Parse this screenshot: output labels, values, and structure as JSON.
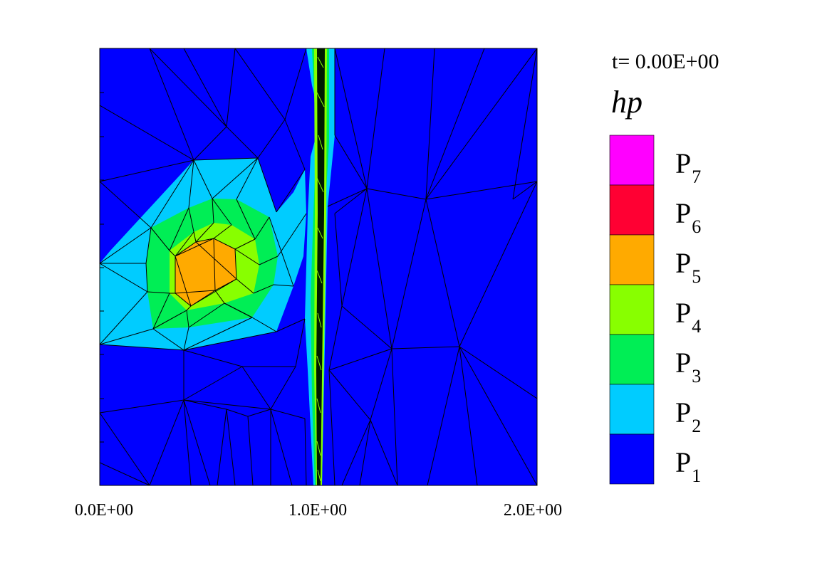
{
  "plot": {
    "time_label": "t= 0.00E+00",
    "field_label": "hp",
    "x_ticks": [
      "0.0E+00",
      "1.0E+00",
      "2.0E+00"
    ]
  },
  "legend": [
    {
      "base": "P",
      "sub": "7",
      "color": "#ff00ff"
    },
    {
      "base": "P",
      "sub": "6",
      "color": "#ff0033"
    },
    {
      "base": "P",
      "sub": "5",
      "color": "#ffaa00"
    },
    {
      "base": "P",
      "sub": "4",
      "color": "#88ff00"
    },
    {
      "base": "P",
      "sub": "3",
      "color": "#00ee55"
    },
    {
      "base": "P",
      "sub": "2",
      "color": "#00ccff"
    },
    {
      "base": "P",
      "sub": "1",
      "color": "#0000ff"
    }
  ],
  "colors": {
    "background": "#0000ff",
    "mesh": "#000000",
    "front_dark": "#001a00"
  }
}
